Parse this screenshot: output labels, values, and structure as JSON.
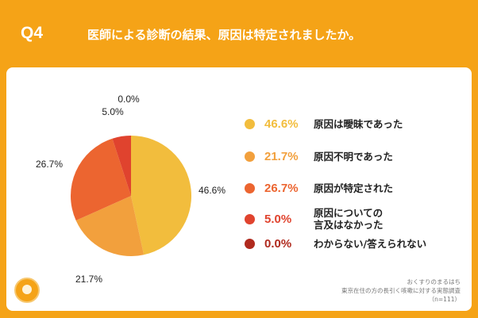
{
  "header": {
    "q_label": "Q4",
    "question": "医師による診断の結果、原因は特定されましたか。"
  },
  "chart_data": {
    "type": "pie",
    "title": "医師による診断の結果、原因は特定されましたか。",
    "categories": [
      "原因は曖昧であった",
      "原因不明であった",
      "原因が特定された",
      "原因についての言及はなかった",
      "わからない/答えられない"
    ],
    "values": [
      46.6,
      21.7,
      26.7,
      5.0,
      0.0
    ],
    "labels": [
      "46.6%",
      "21.7%",
      "26.7%",
      "5.0%",
      "0.0%"
    ],
    "colors": [
      "#F2BD3D",
      "#F2A03D",
      "#EC6530",
      "#E0432E",
      "#B02A1E"
    ],
    "legend_position": "right"
  },
  "legend": [
    {
      "pct": "46.6%",
      "line1": "原因は曖昧であった",
      "line2": ""
    },
    {
      "pct": "21.7%",
      "line1": "原因不明であった",
      "line2": ""
    },
    {
      "pct": "26.7%",
      "line1": "原因が特定された",
      "line2": ""
    },
    {
      "pct": "5.0%",
      "line1": "原因についての",
      "line2": "言及はなかった"
    },
    {
      "pct": "0.0%",
      "line1": "わからない/答えられない",
      "line2": ""
    }
  ],
  "source": {
    "line1": "おくすりのまるはち",
    "line2": "東京在住の方の長引く咳嗽に対する実態調査",
    "line3": "（n=111）"
  }
}
